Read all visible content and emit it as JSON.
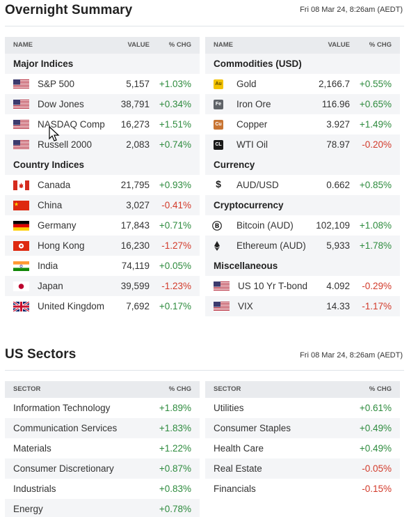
{
  "overnight": {
    "title": "Overnight Summary",
    "date": "Fri 08 Mar 24, 8:26am (AEDT)",
    "left_header": {
      "name": "NAME",
      "value": "VALUE",
      "chg": "% CHG"
    },
    "right_header": {
      "name": "NAME",
      "value": "VALUE",
      "chg": "% CHG"
    },
    "major_indices": {
      "label": "Major Indices",
      "rows": [
        {
          "name": "S&P 500",
          "value": "5,157",
          "chg": "+1.03%",
          "flag": "us-flag-icon"
        },
        {
          "name": "Dow Jones",
          "value": "38,791",
          "chg": "+0.34%",
          "flag": "us-flag-icon"
        },
        {
          "name": "NASDAQ Comp",
          "value": "16,273",
          "chg": "+1.51%",
          "flag": "us-flag-icon"
        },
        {
          "name": "Russell 2000",
          "value": "2,083",
          "chg": "+0.74%",
          "flag": "us-flag-icon"
        }
      ]
    },
    "country_indices": {
      "label": "Country Indices",
      "rows": [
        {
          "name": "Canada",
          "value": "21,795",
          "chg": "+0.93%",
          "flag": "canada-flag-icon"
        },
        {
          "name": "China",
          "value": "3,027",
          "chg": "-0.41%",
          "flag": "china-flag-icon"
        },
        {
          "name": "Germany",
          "value": "17,843",
          "chg": "+0.71%",
          "flag": "germany-flag-icon"
        },
        {
          "name": "Hong Kong",
          "value": "16,230",
          "chg": "-1.27%",
          "flag": "hong-kong-flag-icon"
        },
        {
          "name": "India",
          "value": "74,119",
          "chg": "+0.05%",
          "flag": "india-flag-icon"
        },
        {
          "name": "Japan",
          "value": "39,599",
          "chg": "-1.23%",
          "flag": "japan-flag-icon"
        },
        {
          "name": "United Kingdom",
          "value": "7,692",
          "chg": "+0.17%",
          "flag": "uk-flag-icon"
        }
      ]
    },
    "commodities": {
      "label": "Commodities (USD)",
      "rows": [
        {
          "name": "Gold",
          "value": "2,166.7",
          "chg": "+0.55%",
          "symbol": "Au",
          "color": "#f2c200"
        },
        {
          "name": "Iron Ore",
          "value": "116.96",
          "chg": "+0.65%",
          "symbol": "Fe",
          "color": "#5f6368"
        },
        {
          "name": "Copper",
          "value": "3.927",
          "chg": "+1.49%",
          "symbol": "Cu",
          "color": "#c87533"
        },
        {
          "name": "WTI Oil",
          "value": "78.97",
          "chg": "-0.20%",
          "symbol": "CL",
          "color": "#1a1a1a"
        }
      ]
    },
    "currency": {
      "label": "Currency",
      "rows": [
        {
          "name": "AUD/USD",
          "value": "0.662",
          "chg": "+0.85%",
          "symbol": "$"
        }
      ]
    },
    "crypto": {
      "label": "Cryptocurrency",
      "rows": [
        {
          "name": "Bitcoin (AUD)",
          "value": "102,109",
          "chg": "+1.08%",
          "icon": "bitcoin-icon"
        },
        {
          "name": "Ethereum (AUD)",
          "value": "5,933",
          "chg": "+1.78%",
          "icon": "ethereum-icon"
        }
      ]
    },
    "misc": {
      "label": "Miscellaneous",
      "rows": [
        {
          "name": "US 10 Yr T-bond",
          "value": "4.092",
          "chg": "-0.29%",
          "flag": "us-flag-icon"
        },
        {
          "name": "VIX",
          "value": "14.33",
          "chg": "-1.17%",
          "flag": "us-flag-icon"
        }
      ]
    }
  },
  "sectors": {
    "title": "US Sectors",
    "date": "Fri 08 Mar 24, 8:26am (AEDT)",
    "header": {
      "name": "SECTOR",
      "chg": "% CHG"
    },
    "left": [
      {
        "name": "Information Technology",
        "chg": "+1.89%"
      },
      {
        "name": "Communication Services",
        "chg": "+1.83%"
      },
      {
        "name": "Materials",
        "chg": "+1.22%"
      },
      {
        "name": "Consumer Discretionary",
        "chg": "+0.87%"
      },
      {
        "name": "Industrials",
        "chg": "+0.83%"
      },
      {
        "name": "Energy",
        "chg": "+0.78%"
      }
    ],
    "right": [
      {
        "name": "Utilities",
        "chg": "+0.61%"
      },
      {
        "name": "Consumer Staples",
        "chg": "+0.49%"
      },
      {
        "name": "Health Care",
        "chg": "+0.49%"
      },
      {
        "name": "Real Estate",
        "chg": "-0.05%"
      },
      {
        "name": "Financials",
        "chg": "-0.15%"
      }
    ]
  },
  "colors": {
    "positive": "#2e8b3e",
    "negative": "#d23a2a",
    "header_bg": "#e9ebee",
    "stripe_bg": "#f4f5f7"
  }
}
